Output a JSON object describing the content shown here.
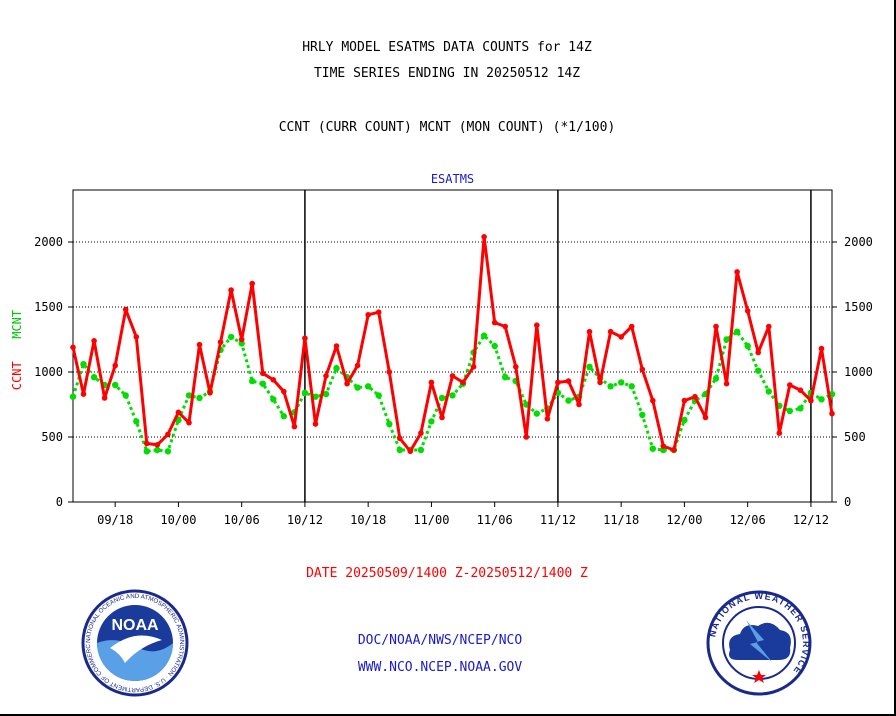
{
  "header": {
    "title_line1": "HRLY MODEL ESATMS DATA COUNTS for 14Z",
    "title_line2": "TIME SERIES ENDING IN 20250512 14Z",
    "subtitle": "CCNT (CURR COUNT) MCNT (MON COUNT) (*1/100)"
  },
  "chart_label": "ESATMS",
  "y_label_ccnt": "CCNT",
  "y_label_mcnt": "MCNT",
  "date_range": "DATE 20250509/1400 Z-20250512/1400 Z",
  "footer": {
    "line1": "DOC/NOAA/NWS/NCEP/NCO",
    "line2": "WWW.NCO.NCEP.NOAA.GOV"
  },
  "logos": {
    "noaa": "NOAA",
    "noaa_ring": "NATIONAL OCEANIC AND ATMOSPHERIC ADMINISTRATION · U.S. DEPARTMENT OF COMMERCE ·",
    "nws_ring": "NATIONAL WEATHER SERVICE"
  },
  "colors": {
    "ccnt": "#ff0000",
    "mcnt": "#00dd00",
    "title": "#000000",
    "label": "#1a1acc"
  },
  "chart_data": {
    "type": "line",
    "title": "ESATMS",
    "ylabel": "CCNT MCNT",
    "xlabel": "DATE 20250509/1400 Z-20250512/1400 Z",
    "ylim": [
      0,
      2400
    ],
    "yticks": [
      0,
      500,
      1000,
      1500,
      2000
    ],
    "x_tick_labels": [
      "09/18",
      "10/00",
      "10/06",
      "10/12",
      "10/18",
      "11/00",
      "11/06",
      "11/12",
      "11/18",
      "12/00",
      "12/06",
      "12/12"
    ],
    "x_tick_hours": [
      4,
      10,
      16,
      22,
      28,
      34,
      40,
      46,
      52,
      58,
      64,
      70
    ],
    "xlim_hours": [
      0,
      72
    ],
    "day_boundaries_hours": [
      22,
      46,
      70
    ],
    "grid": true,
    "series": [
      {
        "name": "CCNT",
        "color": "#ff0000",
        "values": [
          1190,
          830,
          1240,
          800,
          1050,
          1480,
          1270,
          450,
          440,
          520,
          690,
          610,
          1210,
          840,
          1230,
          1630,
          1250,
          1680,
          990,
          940,
          850,
          580,
          1260,
          600,
          970,
          1200,
          910,
          1050,
          1440,
          1460,
          1000,
          490,
          390,
          530,
          920,
          650,
          970,
          920,
          1040,
          2040,
          1380,
          1350,
          1040,
          500,
          1360,
          640,
          920,
          930,
          750,
          1310,
          920,
          1310,
          1270,
          1350,
          1020,
          780,
          430,
          400,
          780,
          810,
          650,
          1350,
          910,
          1770,
          1470,
          1150,
          1350,
          530,
          900,
          860,
          780,
          1180,
          680
        ]
      },
      {
        "name": "MCNT",
        "color": "#00dd00",
        "values": [
          810,
          1060,
          960,
          900,
          900,
          820,
          620,
          390,
          400,
          390,
          630,
          820,
          800,
          850,
          1170,
          1270,
          1220,
          930,
          910,
          790,
          660,
          690,
          840,
          810,
          830,
          1030,
          960,
          880,
          890,
          820,
          600,
          400,
          400,
          400,
          620,
          800,
          820,
          910,
          1150,
          1280,
          1200,
          960,
          930,
          750,
          680,
          720,
          840,
          780,
          810,
          1040,
          950,
          890,
          920,
          890,
          670,
          410,
          400,
          400,
          630,
          780,
          830,
          950,
          1250,
          1310,
          1200,
          1010,
          850,
          740,
          700,
          720,
          840,
          790,
          830
        ]
      }
    ]
  }
}
